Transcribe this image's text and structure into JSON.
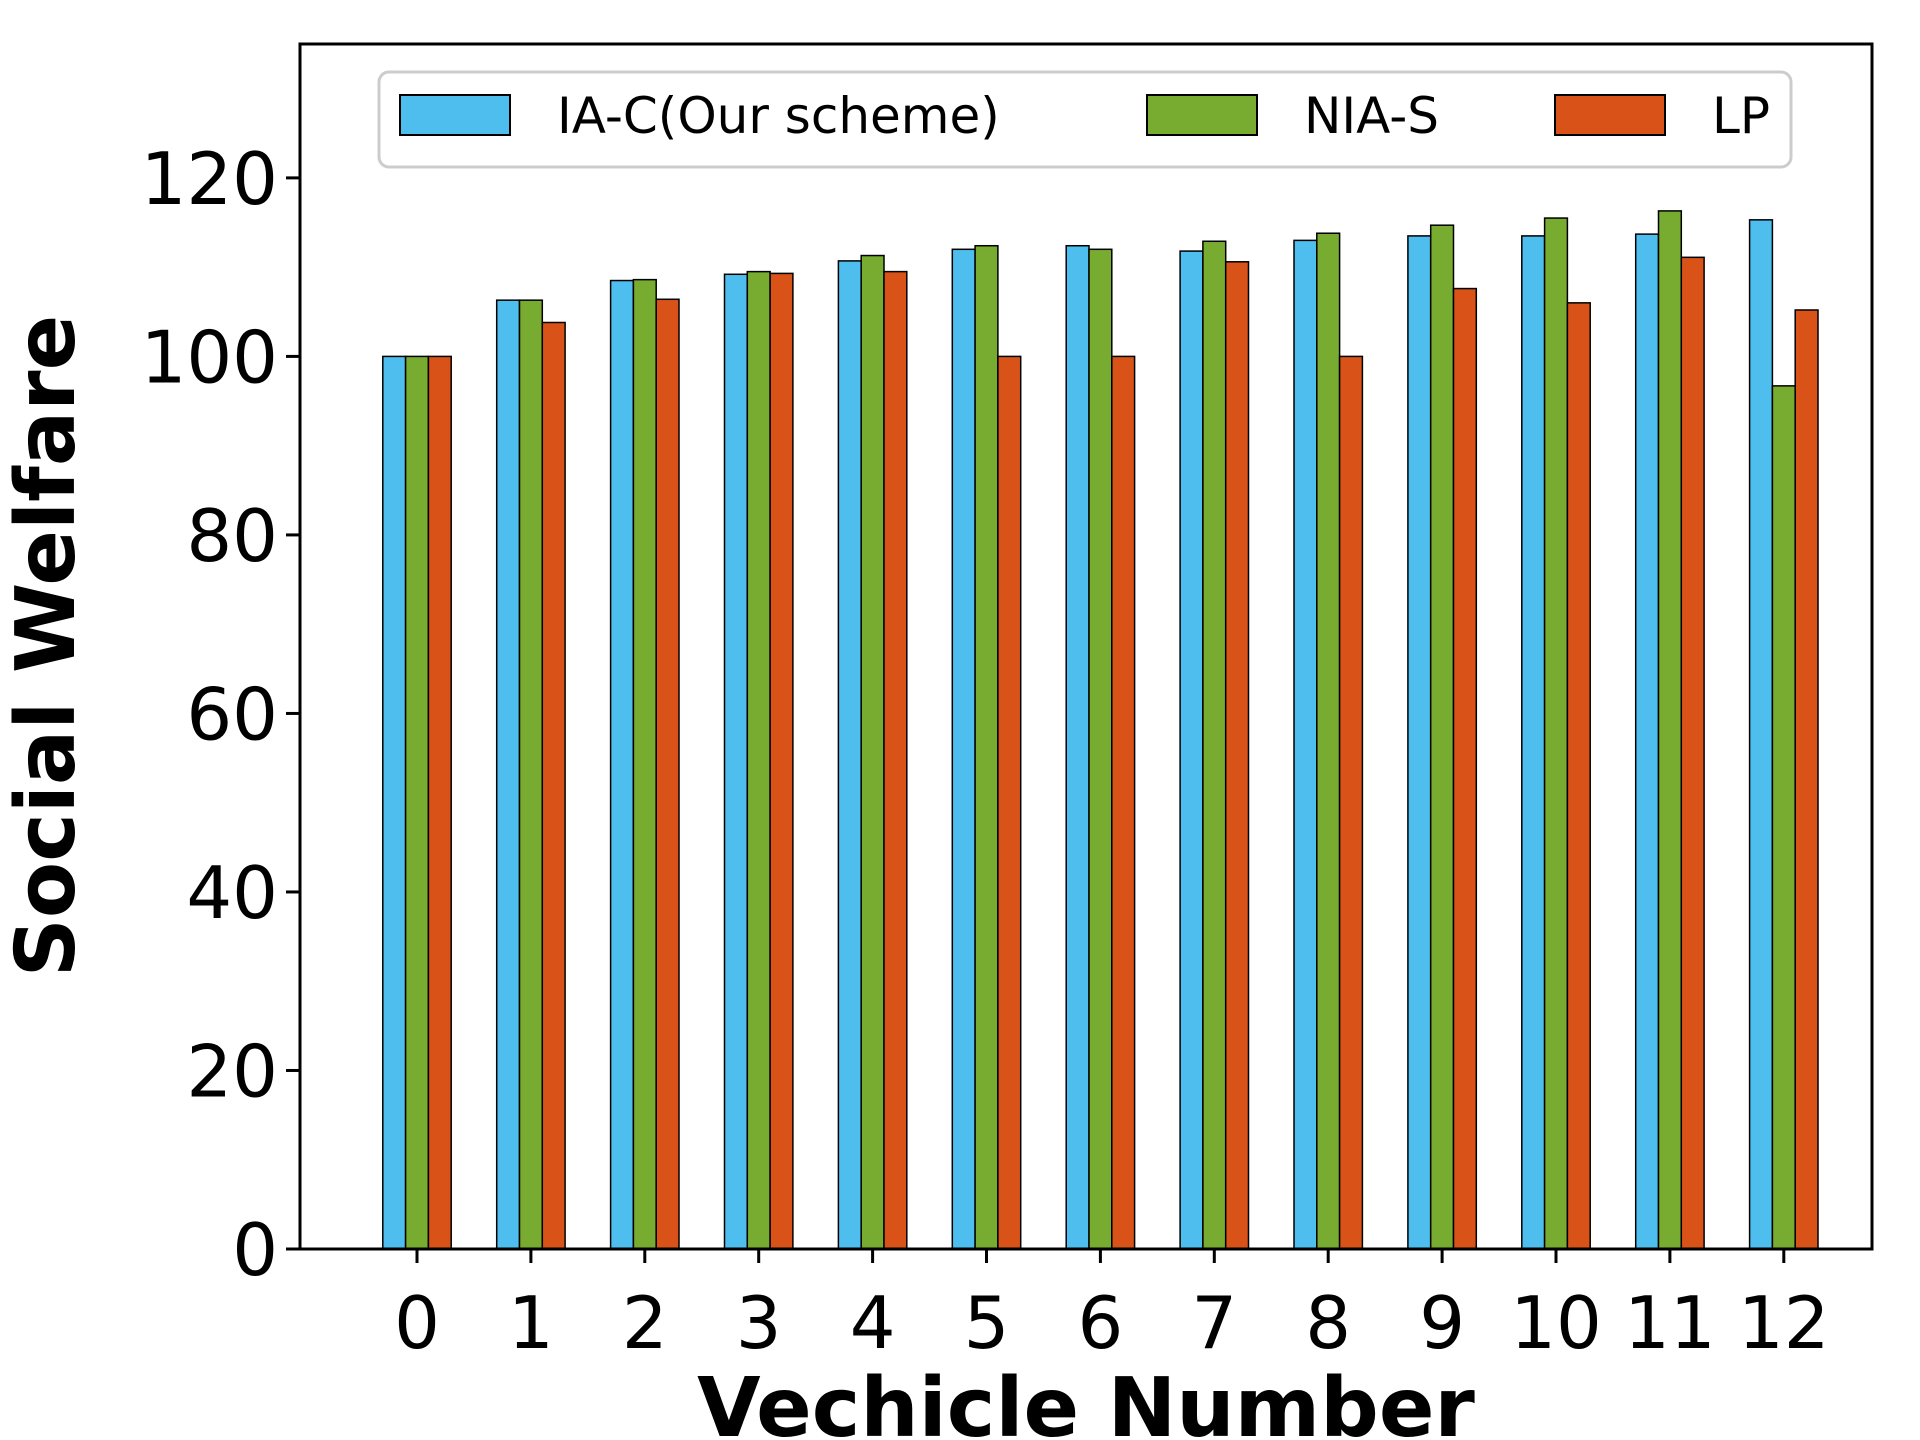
{
  "chart_data": {
    "type": "bar",
    "title": "",
    "xlabel": "Vechicle Number",
    "ylabel": "Social Welfare",
    "categories": [
      "0",
      "1",
      "2",
      "3",
      "4",
      "5",
      "6",
      "7",
      "8",
      "9",
      "10",
      "11",
      "12"
    ],
    "ylim": [
      0,
      135
    ],
    "yticks": [
      0,
      20,
      40,
      60,
      80,
      100,
      120
    ],
    "grid": false,
    "legend_position": "top",
    "series": [
      {
        "name": "IA-C(Our scheme)",
        "color": "#4dbeee",
        "values": [
          100.0,
          106.3,
          108.5,
          109.2,
          110.7,
          112.0,
          112.4,
          111.8,
          113.0,
          113.5,
          113.5,
          113.7,
          115.3
        ]
      },
      {
        "name": "NIA-S",
        "color": "#77ac30",
        "values": [
          100.0,
          106.3,
          108.6,
          109.5,
          111.3,
          112.4,
          112.0,
          112.9,
          113.8,
          114.7,
          115.5,
          116.3,
          96.7
        ]
      },
      {
        "name": "LP",
        "color": "#d95319",
        "values": [
          100.0,
          103.8,
          106.4,
          109.3,
          109.5,
          100.0,
          100.0,
          110.6,
          100.0,
          107.6,
          106.0,
          111.1,
          105.2
        ]
      }
    ]
  }
}
